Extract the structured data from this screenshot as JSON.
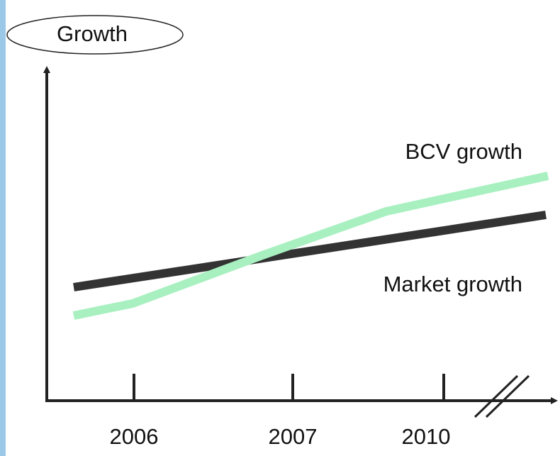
{
  "title": "Growth",
  "series_labels": [
    "BCV growth",
    "Market growth"
  ],
  "x_labels": [
    "2006",
    "2007",
    "2010"
  ]
}
